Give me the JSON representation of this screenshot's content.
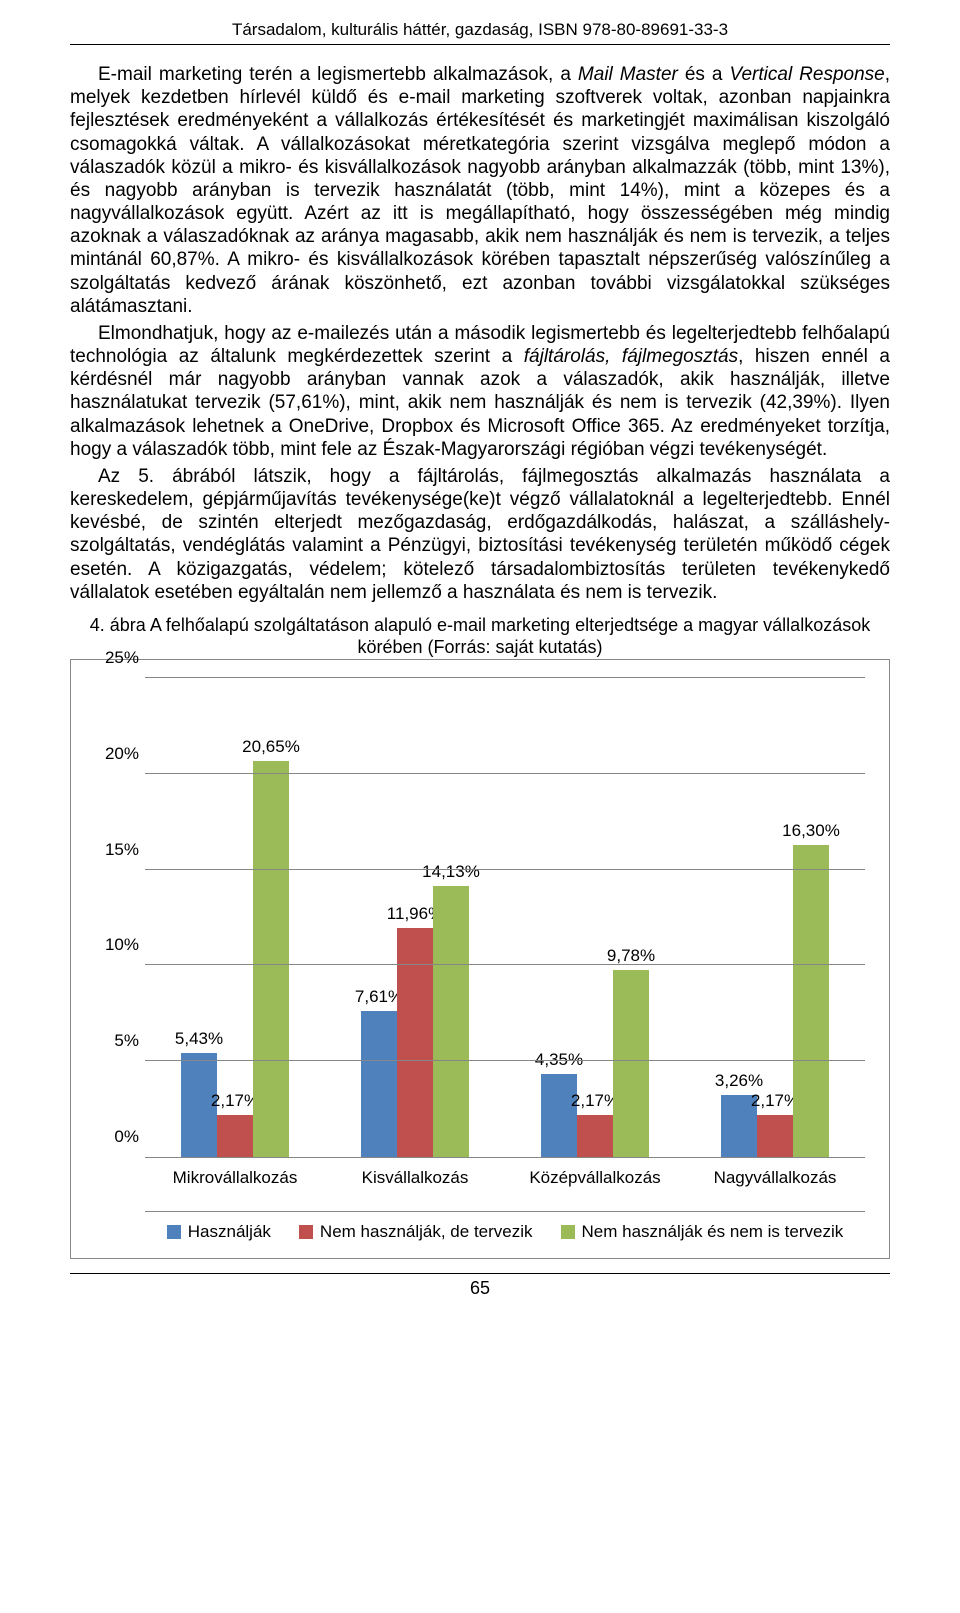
{
  "header": "Társadalom, kulturális háttér, gazdaság, ISBN 978-80-89691-33-3",
  "para1_a": "E-mail marketing terén a legismertebb alkalmazások, a ",
  "para1_it1": "Mail Master",
  "para1_b": " és a ",
  "para1_it2": "Vertical Response",
  "para1_c": ", melyek kezdetben hírlevél küldő és e-mail marketing szoftverek voltak, azonban napjainkra fejlesztések eredményeként a vállalkozás értékesítését és marketingjét maximálisan kiszolgáló csomagokká váltak. A vállalkozásokat méretkategória szerint vizsgálva meglepő módon a válaszadók közül a mikro- és kisvállalkozások nagyobb arányban alkalmazzák (több, mint 13%), és nagyobb arányban is tervezik használatát (több, mint 14%), mint a közepes és a nagyvállalkozások együtt. Azért az itt is megállapítható, hogy összességében még mindig azoknak a válaszadóknak az aránya magasabb, akik nem használják és nem is tervezik, a teljes mintánál 60,87%. A mikro- és kisvállalkozások körében tapasztalt népszerűség valószínűleg a szolgáltatás kedvező árának köszönhető, ezt azonban további vizsgálatokkal szükséges alátámasztani.",
  "para2_a": "Elmondhatjuk, hogy az e-mailezés után a második legismertebb és legelterjedtebb felhőalapú technológia az általunk megkérdezettek szerint a ",
  "para2_it1": "fájltárolás, fájlmegosztás",
  "para2_b": ", hiszen ennél a kérdésnél már nagyobb arányban vannak azok a válaszadók, akik használják, illetve használatukat tervezik (57,61%), mint, akik nem használják és nem is tervezik (42,39%). Ilyen alkalmazások lehetnek a OneDrive, Dropbox és Microsoft Office 365. Az eredményeket torzítja, hogy a válaszadók több, mint fele az Észak-Magyarországi régióban végzi tevékenységét.",
  "para3": "Az 5. ábrából látszik, hogy a fájltárolás, fájlmegosztás alkalmazás használata a kereskedelem, gépjárműjavítás tevékenysége(ke)t végző vállalatoknál a legelterjedtebb. Ennél kevésbé, de szintén elterjedt mezőgazdaság, erdőgazdálkodás, halászat, a szálláshely-szolgáltatás, vendéglátás valamint a Pénzügyi, biztosítási tevékenység területén működő cégek esetén. A közigazgatás, védelem; kötelező társadalombiztosítás területen tevékenykedő vállalatok esetében egyáltalán nem jellemző a használata és nem is tervezik.",
  "caption": "4. ábra A felhőalapú szolgáltatáson alapuló e-mail marketing elterjedtsége a magyar vállalkozások körében (Forrás: saját kutatás)",
  "chart": {
    "ymax": 25,
    "yticks": [
      "0%",
      "5%",
      "10%",
      "15%",
      "20%",
      "25%"
    ],
    "ytick_vals": [
      0,
      5,
      10,
      15,
      20,
      25
    ],
    "colors": {
      "s1": "#4f81bd",
      "s2": "#c0504d",
      "s3": "#9bbb59",
      "grid": "#868686"
    },
    "categories": [
      "Mikrovállalkozás",
      "Kisvállalkozás",
      "Középvállalkozás",
      "Nagyvállalkozás"
    ],
    "series_labels": [
      "Használják",
      "Nem használják, de tervezik",
      "Nem használják és nem is tervezik"
    ],
    "data": [
      {
        "v": [
          5.43,
          2.17,
          20.65
        ],
        "lbl": [
          "5,43%",
          "2,17%",
          "20,65%"
        ]
      },
      {
        "v": [
          7.61,
          11.96,
          14.13
        ],
        "lbl": [
          "7,61%",
          "11,96%",
          "14,13%"
        ]
      },
      {
        "v": [
          4.35,
          2.17,
          9.78
        ],
        "lbl": [
          "4,35%",
          "2,17%",
          "9,78%"
        ]
      },
      {
        "v": [
          3.26,
          2.17,
          16.3
        ],
        "lbl": [
          "3,26%",
          "2,17%",
          "16,30%"
        ]
      }
    ]
  },
  "page_number": "65"
}
